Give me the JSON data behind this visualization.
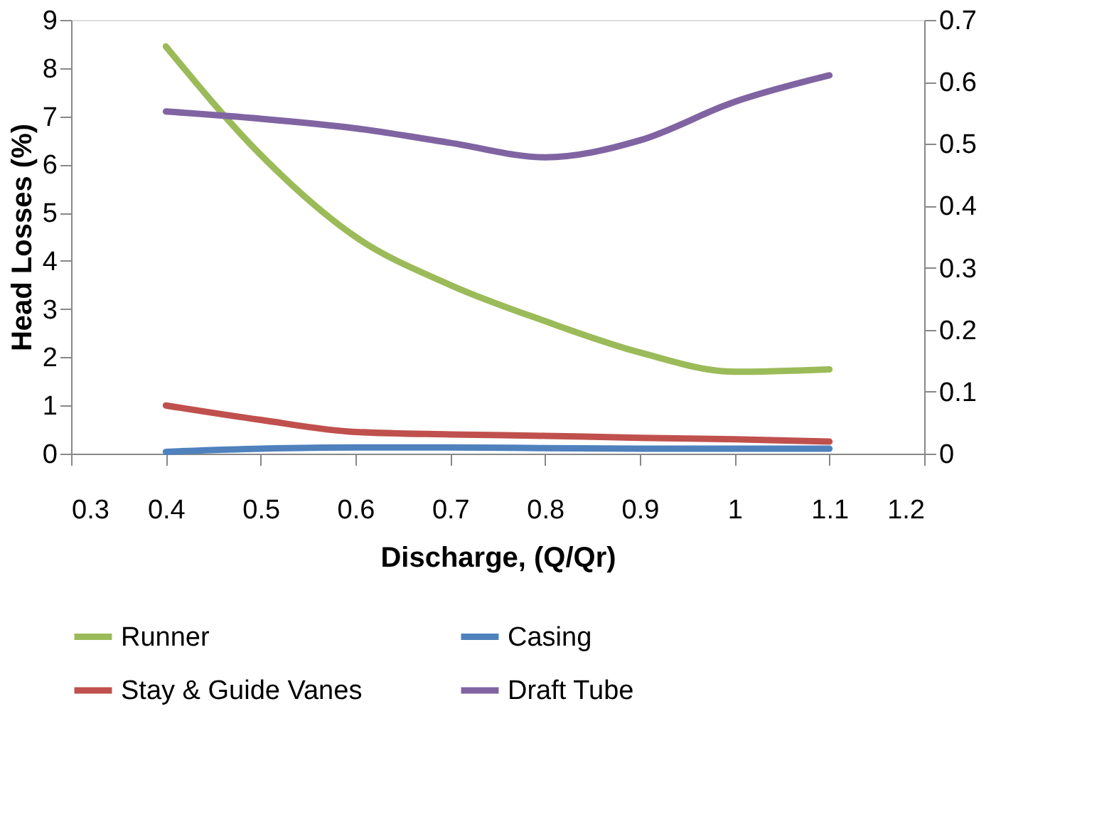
{
  "chart_data": {
    "type": "line",
    "xlabel": "Discharge, (Q/Qr)",
    "ylabel": "Head Losses (%)",
    "x": [
      0.4,
      0.5,
      0.6,
      0.7,
      0.8,
      0.9,
      1.0,
      1.1
    ],
    "series": [
      {
        "name": "Runner",
        "color": "#9bbb59",
        "values": [
          8.45,
          6.2,
          4.5,
          3.5,
          2.75,
          2.1,
          1.7,
          1.75
        ]
      },
      {
        "name": "Casing",
        "color": "#4f81bd",
        "axis": "y2",
        "values": [
          0.003,
          0.008,
          0.01,
          0.01,
          0.009,
          0.008,
          0.008,
          0.008
        ]
      },
      {
        "name": "Stay & Guide Vanes",
        "color": "#c0504d",
        "values": [
          1.0,
          0.7,
          0.45,
          0.4,
          0.37,
          0.33,
          0.3,
          0.25
        ]
      },
      {
        "name": "Draft Tube",
        "color": "#8064a2",
        "values": [
          7.1,
          6.95,
          6.75,
          6.45,
          6.15,
          6.5,
          7.3,
          7.85
        ]
      }
    ],
    "xlim": [
      0.3,
      1.2
    ],
    "xticks": [
      0.3,
      0.4,
      0.5,
      0.6,
      0.7,
      0.8,
      0.9,
      1,
      1.1,
      1.2
    ],
    "ylim": [
      0,
      9
    ],
    "yticks": [
      0,
      1,
      2,
      3,
      4,
      5,
      6,
      7,
      8,
      9
    ],
    "y2lim": [
      0,
      0.7
    ],
    "y2ticks": [
      0,
      0.1,
      0.2,
      0.3,
      0.4,
      0.5,
      0.6,
      0.7
    ],
    "grid": false,
    "legend": "bottom",
    "marker": "none",
    "line_style": "solid"
  }
}
